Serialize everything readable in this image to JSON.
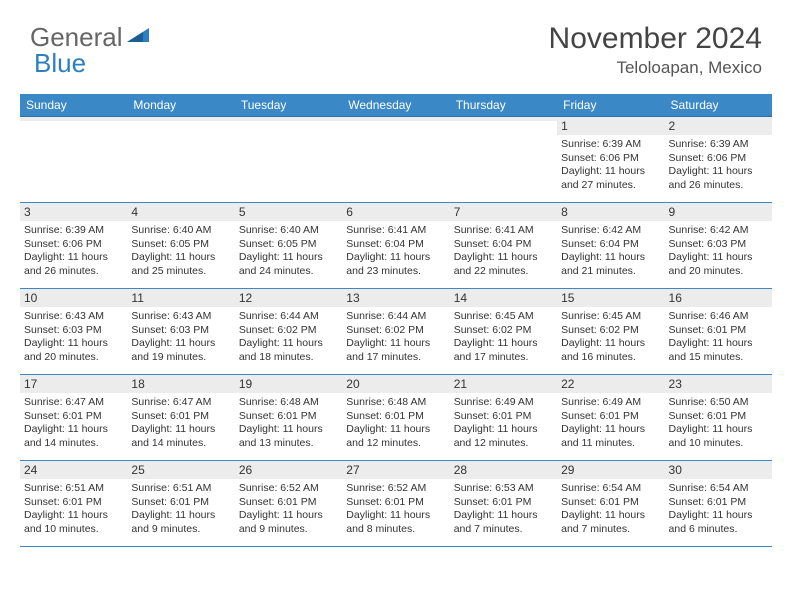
{
  "brand": {
    "part1": "General",
    "part2": "Blue"
  },
  "title": "November 2024",
  "location": "Teloloapan, Mexico",
  "colors": {
    "header_bg": "#3b88c7",
    "header_text": "#ffffff",
    "daynum_bg": "#ececec",
    "rule": "#3b88c7",
    "logo_accent": "#2d7fc1"
  },
  "typography": {
    "title_fontsize": 30,
    "location_fontsize": 17,
    "dayhead_fontsize": 12,
    "body_fontsize": 10.5
  },
  "day_headers": [
    "Sunday",
    "Monday",
    "Tuesday",
    "Wednesday",
    "Thursday",
    "Friday",
    "Saturday"
  ],
  "weeks": [
    [
      {
        "n": "",
        "sr": "",
        "ss": "",
        "dl": ""
      },
      {
        "n": "",
        "sr": "",
        "ss": "",
        "dl": ""
      },
      {
        "n": "",
        "sr": "",
        "ss": "",
        "dl": ""
      },
      {
        "n": "",
        "sr": "",
        "ss": "",
        "dl": ""
      },
      {
        "n": "",
        "sr": "",
        "ss": "",
        "dl": ""
      },
      {
        "n": "1",
        "sr": "Sunrise: 6:39 AM",
        "ss": "Sunset: 6:06 PM",
        "dl": "Daylight: 11 hours and 27 minutes."
      },
      {
        "n": "2",
        "sr": "Sunrise: 6:39 AM",
        "ss": "Sunset: 6:06 PM",
        "dl": "Daylight: 11 hours and 26 minutes."
      }
    ],
    [
      {
        "n": "3",
        "sr": "Sunrise: 6:39 AM",
        "ss": "Sunset: 6:06 PM",
        "dl": "Daylight: 11 hours and 26 minutes."
      },
      {
        "n": "4",
        "sr": "Sunrise: 6:40 AM",
        "ss": "Sunset: 6:05 PM",
        "dl": "Daylight: 11 hours and 25 minutes."
      },
      {
        "n": "5",
        "sr": "Sunrise: 6:40 AM",
        "ss": "Sunset: 6:05 PM",
        "dl": "Daylight: 11 hours and 24 minutes."
      },
      {
        "n": "6",
        "sr": "Sunrise: 6:41 AM",
        "ss": "Sunset: 6:04 PM",
        "dl": "Daylight: 11 hours and 23 minutes."
      },
      {
        "n": "7",
        "sr": "Sunrise: 6:41 AM",
        "ss": "Sunset: 6:04 PM",
        "dl": "Daylight: 11 hours and 22 minutes."
      },
      {
        "n": "8",
        "sr": "Sunrise: 6:42 AM",
        "ss": "Sunset: 6:04 PM",
        "dl": "Daylight: 11 hours and 21 minutes."
      },
      {
        "n": "9",
        "sr": "Sunrise: 6:42 AM",
        "ss": "Sunset: 6:03 PM",
        "dl": "Daylight: 11 hours and 20 minutes."
      }
    ],
    [
      {
        "n": "10",
        "sr": "Sunrise: 6:43 AM",
        "ss": "Sunset: 6:03 PM",
        "dl": "Daylight: 11 hours and 20 minutes."
      },
      {
        "n": "11",
        "sr": "Sunrise: 6:43 AM",
        "ss": "Sunset: 6:03 PM",
        "dl": "Daylight: 11 hours and 19 minutes."
      },
      {
        "n": "12",
        "sr": "Sunrise: 6:44 AM",
        "ss": "Sunset: 6:02 PM",
        "dl": "Daylight: 11 hours and 18 minutes."
      },
      {
        "n": "13",
        "sr": "Sunrise: 6:44 AM",
        "ss": "Sunset: 6:02 PM",
        "dl": "Daylight: 11 hours and 17 minutes."
      },
      {
        "n": "14",
        "sr": "Sunrise: 6:45 AM",
        "ss": "Sunset: 6:02 PM",
        "dl": "Daylight: 11 hours and 17 minutes."
      },
      {
        "n": "15",
        "sr": "Sunrise: 6:45 AM",
        "ss": "Sunset: 6:02 PM",
        "dl": "Daylight: 11 hours and 16 minutes."
      },
      {
        "n": "16",
        "sr": "Sunrise: 6:46 AM",
        "ss": "Sunset: 6:01 PM",
        "dl": "Daylight: 11 hours and 15 minutes."
      }
    ],
    [
      {
        "n": "17",
        "sr": "Sunrise: 6:47 AM",
        "ss": "Sunset: 6:01 PM",
        "dl": "Daylight: 11 hours and 14 minutes."
      },
      {
        "n": "18",
        "sr": "Sunrise: 6:47 AM",
        "ss": "Sunset: 6:01 PM",
        "dl": "Daylight: 11 hours and 14 minutes."
      },
      {
        "n": "19",
        "sr": "Sunrise: 6:48 AM",
        "ss": "Sunset: 6:01 PM",
        "dl": "Daylight: 11 hours and 13 minutes."
      },
      {
        "n": "20",
        "sr": "Sunrise: 6:48 AM",
        "ss": "Sunset: 6:01 PM",
        "dl": "Daylight: 11 hours and 12 minutes."
      },
      {
        "n": "21",
        "sr": "Sunrise: 6:49 AM",
        "ss": "Sunset: 6:01 PM",
        "dl": "Daylight: 11 hours and 12 minutes."
      },
      {
        "n": "22",
        "sr": "Sunrise: 6:49 AM",
        "ss": "Sunset: 6:01 PM",
        "dl": "Daylight: 11 hours and 11 minutes."
      },
      {
        "n": "23",
        "sr": "Sunrise: 6:50 AM",
        "ss": "Sunset: 6:01 PM",
        "dl": "Daylight: 11 hours and 10 minutes."
      }
    ],
    [
      {
        "n": "24",
        "sr": "Sunrise: 6:51 AM",
        "ss": "Sunset: 6:01 PM",
        "dl": "Daylight: 11 hours and 10 minutes."
      },
      {
        "n": "25",
        "sr": "Sunrise: 6:51 AM",
        "ss": "Sunset: 6:01 PM",
        "dl": "Daylight: 11 hours and 9 minutes."
      },
      {
        "n": "26",
        "sr": "Sunrise: 6:52 AM",
        "ss": "Sunset: 6:01 PM",
        "dl": "Daylight: 11 hours and 9 minutes."
      },
      {
        "n": "27",
        "sr": "Sunrise: 6:52 AM",
        "ss": "Sunset: 6:01 PM",
        "dl": "Daylight: 11 hours and 8 minutes."
      },
      {
        "n": "28",
        "sr": "Sunrise: 6:53 AM",
        "ss": "Sunset: 6:01 PM",
        "dl": "Daylight: 11 hours and 7 minutes."
      },
      {
        "n": "29",
        "sr": "Sunrise: 6:54 AM",
        "ss": "Sunset: 6:01 PM",
        "dl": "Daylight: 11 hours and 7 minutes."
      },
      {
        "n": "30",
        "sr": "Sunrise: 6:54 AM",
        "ss": "Sunset: 6:01 PM",
        "dl": "Daylight: 11 hours and 6 minutes."
      }
    ]
  ]
}
